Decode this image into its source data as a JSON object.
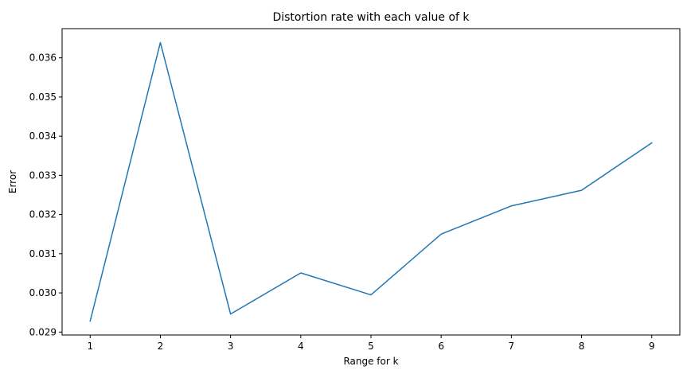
{
  "chart_data": {
    "type": "line",
    "title": "Distortion rate with each value of k",
    "xlabel": "Range for k",
    "ylabel": "Error",
    "x": [
      1,
      2,
      3,
      4,
      5,
      6,
      7,
      8,
      9
    ],
    "series": [
      {
        "values": [
          0.02928,
          0.03639,
          0.02946,
          0.03051,
          0.02995,
          0.0315,
          0.03222,
          0.03262,
          0.03383
        ],
        "color": "#1f77b4"
      }
    ],
    "xlim": [
      0.6,
      9.4
    ],
    "ylim": [
      0.028925,
      0.036745
    ],
    "xticks": [
      1,
      2,
      3,
      4,
      5,
      6,
      7,
      8,
      9
    ],
    "yticks": [
      0.029,
      0.03,
      0.031,
      0.032,
      0.033,
      0.034,
      0.035,
      0.036
    ],
    "ytick_labels": [
      "0.029",
      "0.030",
      "0.031",
      "0.032",
      "0.033",
      "0.034",
      "0.035",
      "0.036"
    ],
    "grid": false,
    "legend": false
  }
}
